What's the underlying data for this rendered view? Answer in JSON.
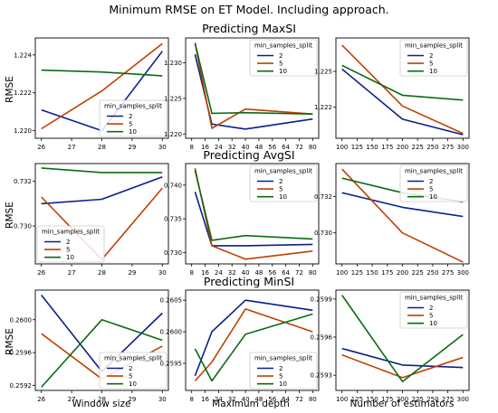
{
  "figure": {
    "title": "Minimum RMSE on ET Model. Including approach.",
    "row_titles": [
      "Predicting MaxSI",
      "Predicting AvgSI",
      "Predicting MinSI"
    ],
    "ylabel": "RMSE",
    "col_xlabels": [
      "Window size",
      "Maximum depth",
      "Number of estimators"
    ],
    "legend_title": "min_samples_split",
    "colors": {
      "2": "#0b1f8a",
      "5": "#c04000",
      "10": "#0a6b12"
    }
  },
  "chart_data": [
    {
      "type": "line",
      "row": 0,
      "col": 0,
      "x": [
        26,
        28,
        30
      ],
      "xticks": [
        26,
        27,
        28,
        29,
        30
      ],
      "yticks": [
        1.22,
        1.222,
        1.224
      ],
      "ytick_labels": [
        "1.220",
        "1.222",
        "1.224"
      ],
      "ylim": [
        1.2196,
        1.2249
      ],
      "legend_position": "lower-right",
      "series": [
        {
          "name": "2",
          "values": [
            1.2211,
            1.22,
            1.2242
          ]
        },
        {
          "name": "5",
          "values": [
            1.2201,
            1.2221,
            1.2246
          ]
        },
        {
          "name": "10",
          "values": [
            1.2232,
            1.2231,
            1.2229
          ]
        }
      ]
    },
    {
      "type": "line",
      "row": 0,
      "col": 1,
      "x": [
        10,
        20,
        40,
        80
      ],
      "xticks": [
        8,
        16,
        24,
        32,
        40,
        48,
        56,
        64,
        72,
        80
      ],
      "yticks": [
        1.22,
        1.225,
        1.23
      ],
      "ytick_labels": [
        "1.220",
        "1.225",
        "1.230"
      ],
      "ylim": [
        1.2194,
        1.2335
      ],
      "legend_position": "upper-right",
      "series": [
        {
          "name": "2",
          "values": [
            1.2312,
            1.2214,
            1.2207,
            1.2221
          ]
        },
        {
          "name": "5",
          "values": [
            1.2328,
            1.2208,
            1.2235,
            1.2228
          ]
        },
        {
          "name": "10",
          "values": [
            1.2328,
            1.2229,
            1.223,
            1.2228
          ]
        }
      ]
    },
    {
      "type": "line",
      "row": 0,
      "col": 2,
      "x": [
        100,
        200,
        300
      ],
      "xticks": [
        100,
        125,
        150,
        175,
        200,
        225,
        250,
        275,
        300
      ],
      "yticks": [
        1.222,
        1.225
      ],
      "ytick_labels": [
        "1.222",
        "1.225"
      ],
      "ylim": [
        1.2194,
        1.2278
      ],
      "legend_position": "upper-right",
      "series": [
        {
          "name": "2",
          "values": [
            1.2252,
            1.221,
            1.2197
          ]
        },
        {
          "name": "5",
          "values": [
            1.2272,
            1.2221,
            1.2198
          ]
        },
        {
          "name": "10",
          "values": [
            1.2255,
            1.223,
            1.2226
          ]
        }
      ]
    },
    {
      "type": "line",
      "row": 1,
      "col": 0,
      "x": [
        26,
        28,
        30
      ],
      "xticks": [
        26,
        27,
        28,
        29,
        30
      ],
      "yticks": [
        0.73,
        0.732
      ],
      "ytick_labels": [
        "0.730",
        "0.732"
      ],
      "ylim": [
        0.7283,
        0.7328
      ],
      "legend_position": "lower-left",
      "series": [
        {
          "name": "2",
          "values": [
            0.731,
            0.7312,
            0.7322
          ]
        },
        {
          "name": "5",
          "values": [
            0.7313,
            0.7285,
            0.7317
          ]
        },
        {
          "name": "10",
          "values": [
            0.7326,
            0.7324,
            0.7324
          ]
        }
      ]
    },
    {
      "type": "line",
      "row": 1,
      "col": 1,
      "x": [
        10,
        20,
        40,
        80
      ],
      "xticks": [
        8,
        16,
        24,
        32,
        40,
        48,
        56,
        64,
        72,
        80
      ],
      "yticks": [
        0.73,
        0.735,
        0.74
      ],
      "ytick_labels": [
        "0.730",
        "0.735",
        "0.740"
      ],
      "ylim": [
        0.7283,
        0.7432
      ],
      "legend_position": "upper-right",
      "series": [
        {
          "name": "2",
          "values": [
            0.739,
            0.731,
            0.731,
            0.7312
          ]
        },
        {
          "name": "5",
          "values": [
            0.7425,
            0.731,
            0.729,
            0.7302
          ]
        },
        {
          "name": "10",
          "values": [
            0.7422,
            0.7318,
            0.7325,
            0.732
          ]
        }
      ]
    },
    {
      "type": "line",
      "row": 1,
      "col": 2,
      "x": [
        100,
        200,
        300
      ],
      "xticks": [
        100,
        125,
        150,
        175,
        200,
        225,
        250,
        275,
        300
      ],
      "yticks": [
        0.73,
        0.732
      ],
      "ytick_labels": [
        "0.730",
        "0.732"
      ],
      "ylim": [
        0.7283,
        0.7338
      ],
      "legend_position": "upper-right",
      "series": [
        {
          "name": "2",
          "values": [
            0.7322,
            0.7314,
            0.7309
          ]
        },
        {
          "name": "5",
          "values": [
            0.7335,
            0.73,
            0.7284
          ]
        },
        {
          "name": "10",
          "values": [
            0.733,
            0.7322,
            0.7317
          ]
        }
      ]
    },
    {
      "type": "line",
      "row": 2,
      "col": 0,
      "x": [
        26,
        28,
        30
      ],
      "xticks": [
        26,
        27,
        28,
        29,
        30
      ],
      "yticks": [
        0.2592,
        0.2596,
        0.26
      ],
      "ytick_labels": [
        "0.2592",
        "0.2596",
        "0.2600"
      ],
      "ylim": [
        0.25914,
        0.26036
      ],
      "legend_position": "lower-right",
      "series": [
        {
          "name": "2",
          "values": [
            0.2603,
            0.25937,
            0.26008
          ]
        },
        {
          "name": "5",
          "values": [
            0.25983,
            0.25928,
            0.25968
          ]
        },
        {
          "name": "10",
          "values": [
            0.25918,
            0.26,
            0.25975
          ]
        }
      ]
    },
    {
      "type": "line",
      "row": 2,
      "col": 1,
      "x": [
        10,
        20,
        40,
        80
      ],
      "xticks": [
        8,
        16,
        24,
        32,
        40,
        48,
        56,
        64,
        72,
        80
      ],
      "yticks": [
        0.2595,
        0.26,
        0.2605
      ],
      "ytick_labels": [
        "0.2595",
        "0.2600",
        "0.2605"
      ],
      "ylim": [
        0.25907,
        0.26066
      ],
      "legend_position": "lower-right",
      "series": [
        {
          "name": "2",
          "values": [
            0.2593,
            0.26,
            0.2605,
            0.26034
          ]
        },
        {
          "name": "5",
          "values": [
            0.25922,
            0.25952,
            0.26036,
            0.26
          ]
        },
        {
          "name": "10",
          "values": [
            0.25973,
            0.25922,
            0.25996,
            0.26028
          ]
        }
      ]
    },
    {
      "type": "line",
      "row": 2,
      "col": 2,
      "x": [
        100,
        200,
        300
      ],
      "xticks": [
        100,
        125,
        150,
        175,
        200,
        225,
        250,
        275,
        300
      ],
      "yticks": [
        0.2593,
        0.2596,
        0.2599
      ],
      "ytick_labels": [
        "0.2593",
        "0.2596",
        "0.2599"
      ],
      "ylim": [
        0.25918,
        0.25997
      ],
      "legend_position": "upper-right",
      "series": [
        {
          "name": "2",
          "values": [
            0.25951,
            0.25938,
            0.25936
          ]
        },
        {
          "name": "5",
          "values": [
            0.25946,
            0.25928,
            0.25944
          ]
        },
        {
          "name": "10",
          "values": [
            0.25993,
            0.25925,
            0.25962
          ]
        }
      ]
    }
  ]
}
